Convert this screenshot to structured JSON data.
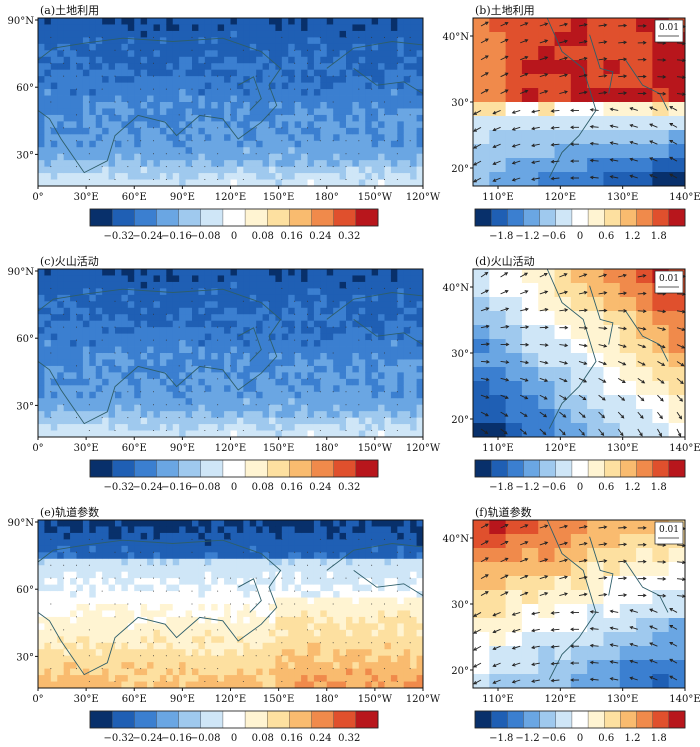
{
  "chart_data": [
    {
      "type": "heatmap",
      "title": "(a)土地利用",
      "field": "negative",
      "x_ticks": [
        "0°",
        "30°E",
        "60°E",
        "90°E",
        "120°E",
        "150°E",
        "180°",
        "150°W",
        "120°W"
      ],
      "y_ticks": [
        "90°N",
        "60°",
        "30°"
      ],
      "colorbar_ticks": [
        "−0.32",
        "−0.24",
        "−0.16",
        "−0.08",
        "0",
        "0.08",
        "0.16",
        "0.24",
        "0.32"
      ],
      "colorbar_range": [
        -0.36,
        0.36
      ],
      "stippling": true
    },
    {
      "type": "heatmap",
      "title": "(b)土地利用",
      "field": "north-red",
      "vector_reference": "0.01",
      "x_ticks": [
        "110°E",
        "120°E",
        "130°E",
        "140°E"
      ],
      "y_ticks": [
        "40°N",
        "30°",
        "20°"
      ],
      "colorbar_ticks": [
        "−1.8",
        "−1.2",
        "−0.6",
        "0",
        "0.6",
        "1.2",
        "1.8"
      ],
      "colorbar_range": [
        -2.1,
        2.1
      ],
      "vectors": true
    },
    {
      "type": "heatmap",
      "title": "(c)火山活动",
      "field": "negative",
      "x_ticks": [
        "0°",
        "30°E",
        "60°E",
        "90°E",
        "120°E",
        "150°E",
        "180°",
        "150°W",
        "120°W"
      ],
      "y_ticks": [
        "90°N",
        "60°",
        "30°"
      ],
      "colorbar_ticks": [
        "−0.32",
        "−0.24",
        "−0.16",
        "−0.08",
        "0",
        "0.08",
        "0.16",
        "0.24",
        "0.32"
      ],
      "colorbar_range": [
        -0.36,
        0.36
      ],
      "stippling": true
    },
    {
      "type": "heatmap",
      "title": "(d)火山活动",
      "field": "northeast-red",
      "vector_reference": "0.01",
      "x_ticks": [
        "110°E",
        "120°E",
        "130°E",
        "140°E"
      ],
      "y_ticks": [
        "40°N",
        "30°",
        "20°"
      ],
      "colorbar_ticks": [
        "−1.8",
        "−1.2",
        "−0.6",
        "0",
        "0.6",
        "1.2",
        "1.8"
      ],
      "colorbar_range": [
        -2.1,
        2.1
      ],
      "vectors": true
    },
    {
      "type": "heatmap",
      "title": "(e)轨道参数",
      "field": "dipole",
      "x_ticks": [
        "0°",
        "30°E",
        "60°E",
        "90°E",
        "120°E",
        "150°E",
        "180°",
        "150°W",
        "120°W"
      ],
      "y_ticks": [
        "90°N",
        "60°",
        "30°"
      ],
      "colorbar_ticks": [
        "−0.32",
        "−0.24",
        "−0.16",
        "−0.08",
        "0",
        "0.08",
        "0.16",
        "0.24",
        "0.32"
      ],
      "colorbar_range": [
        -0.36,
        0.36
      ],
      "stippling": true
    },
    {
      "type": "heatmap",
      "title": "(f)轨道参数",
      "field": "diagonal",
      "vector_reference": "0.01",
      "x_ticks": [
        "110°E",
        "120°E",
        "130°E",
        "140°E"
      ],
      "y_ticks": [
        "40°N",
        "30°",
        "20°"
      ],
      "colorbar_ticks": [
        "−1.8",
        "−1.2",
        "−0.6",
        "0",
        "0.6",
        "1.2",
        "1.8"
      ],
      "colorbar_range": [
        -2.1,
        2.1
      ],
      "vectors": true
    }
  ],
  "colors": {
    "ramp": [
      "#08306b",
      "#1f5fb4",
      "#3b7fd0",
      "#6aa6e3",
      "#9fc9ee",
      "#cfe6f7",
      "#ffffff",
      "#fff4d2",
      "#fde0a0",
      "#f9bb6f",
      "#f08a4b",
      "#e0502d",
      "#b8161c"
    ],
    "land_outline": "#2e5e6a",
    "vector": "#222222"
  }
}
